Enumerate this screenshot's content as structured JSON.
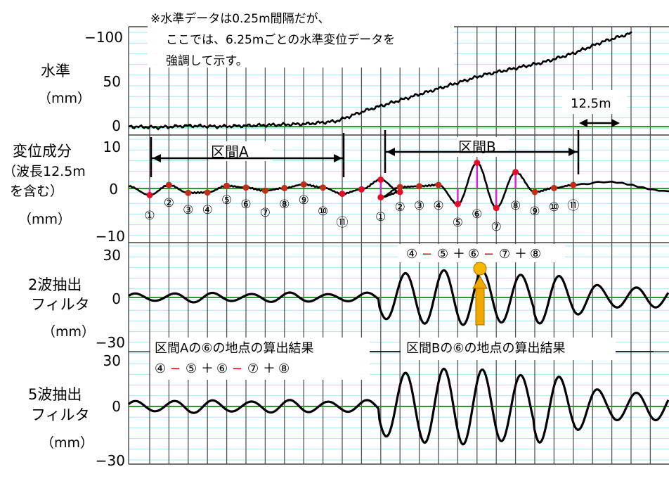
{
  "note": {
    "line1": "※水準データは0.25m間隔だが、",
    "line2": "ここでは、6.25mごとの水準変位データを",
    "line3": "強調して示す。"
  },
  "panels": {
    "level": {
      "label1": "水準",
      "label2": "（mm）",
      "ticks": [
        "−100",
        "50",
        "0"
      ]
    },
    "displacement": {
      "label1": "変位成分",
      "label2": "（波長12.5m",
      "label3": "を含む）",
      "label4": "（mm）",
      "ticks": [
        "10",
        "0",
        "−10"
      ]
    },
    "filter2": {
      "label1": "2波抽出",
      "label2": "フィルタ",
      "label3": "（mm）",
      "ticks": [
        "30",
        "0",
        "−30"
      ]
    },
    "filter5": {
      "label1": "5波抽出",
      "label2": "フィルタ",
      "label3": "（mm）",
      "ticks": [
        "30",
        "0",
        "−30"
      ]
    }
  },
  "annotations": {
    "scale": "12.5m",
    "section_a": "区間A",
    "section_b": "区間B",
    "result_a": "区間Aの⑥の地点の算出結果",
    "result_b": "区間Bの⑥の地点の算出結果",
    "formula_parts": [
      "④",
      "−",
      "⑤",
      "＋",
      "⑥",
      "−",
      "⑦",
      "＋",
      "⑧"
    ],
    "formula_colors": [
      "#000000",
      "#d00000",
      "#000000",
      "#000000",
      "#000000",
      "#d00000",
      "#000000",
      "#000000",
      "#000000"
    ],
    "points_a": [
      "①",
      "②",
      "③",
      "④",
      "⑤",
      "⑥",
      "⑦",
      "⑧",
      "⑨",
      "⑩",
      "⑪"
    ],
    "points_b": [
      "①",
      "②",
      "③",
      "④",
      "⑤",
      "⑥",
      "⑦",
      "⑧",
      "⑨",
      "⑩",
      "⑪"
    ]
  },
  "colors": {
    "grid_major": "#555555",
    "grid_minor": "#a8e6ee",
    "zero_line": "#2a9a2a",
    "curve": "#000000",
    "dot_red": "#e0102a",
    "dot_brown": "#c03018",
    "stem": "#dd22dd",
    "arrow": "#f0a800"
  },
  "chart_data": [
    {
      "type": "line",
      "title": "",
      "ylabel": "水準 (mm)",
      "ylim": [
        0,
        100
      ],
      "x_unit": "m (6.25m per point)",
      "series": [
        {
          "values": [
            0,
            -1,
            1,
            0,
            1,
            2,
            3,
            6,
            18,
            28,
            38,
            48,
            58,
            65,
            72,
            82,
            95,
            105
          ]
        }
      ]
    },
    {
      "type": "line",
      "title": "",
      "ylabel": "変位成分 (mm)",
      "ylim": [
        -10,
        10
      ],
      "x_unit": "m (6.25m per point)",
      "points_a": [
        -1.5,
        0.8,
        -1.0,
        -0.9,
        0.6,
        0.2,
        -0.5,
        0.1,
        0.9,
        0.2,
        -1.2
      ],
      "points_b": [
        -2.0,
        0.3,
        0.5,
        0.8,
        -3.5,
        5.8,
        -4.4,
        3.7,
        -0.8,
        0.1,
        0.8
      ],
      "extra_points": [
        -0.2,
        2.0,
        -0.8
      ]
    },
    {
      "type": "line",
      "title": "",
      "ylabel": "2波抽出フィルタ (mm)",
      "ylim": [
        -30,
        30
      ],
      "peak_amplitude_b": 20,
      "peak_amplitude_a": 3
    },
    {
      "type": "line",
      "title": "",
      "ylabel": "5波抽出フィルタ (mm)",
      "ylim": [
        -30,
        30
      ],
      "peak_amplitude_b": 27,
      "peak_amplitude_a": 4
    }
  ]
}
